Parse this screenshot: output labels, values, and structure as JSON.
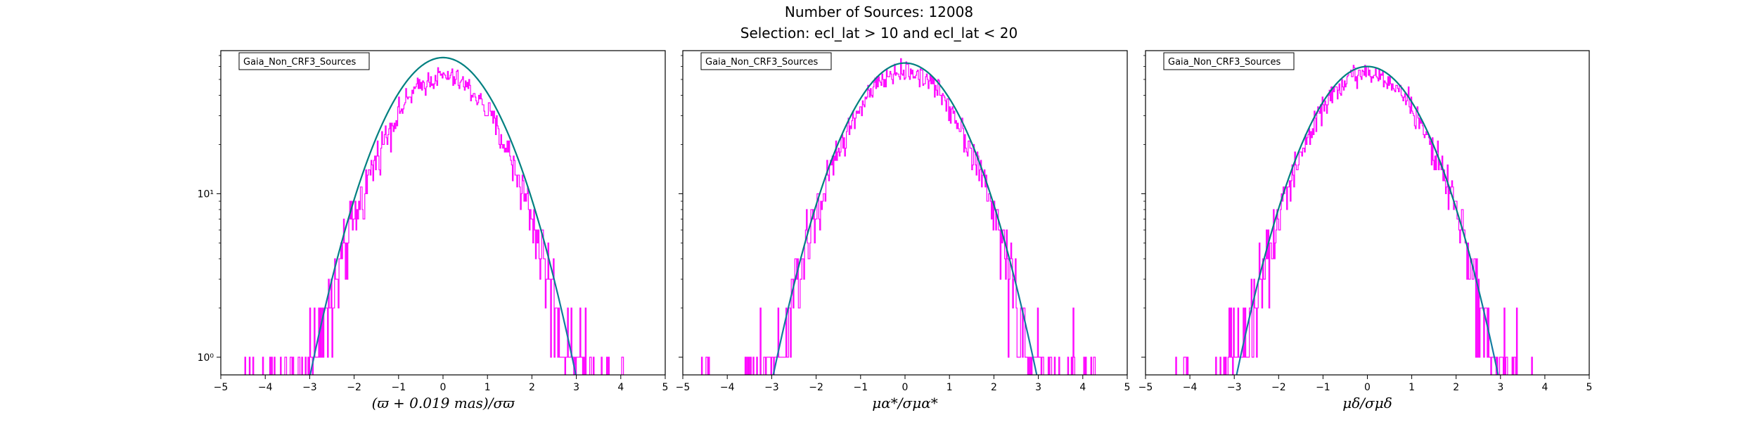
{
  "figure": {
    "title": "Number of Sources: 12008",
    "subtitle": "Selection: ecl_lat > 10 and ecl_lat < 20"
  },
  "colors": {
    "histogram": "#ff00ff",
    "gaussian": [
      "#008080",
      "#1f77b4"
    ],
    "axes": "#000000",
    "background": "#ffffff"
  },
  "chart_data": [
    {
      "type": "line",
      "legend": "Gaia_Non_CRF3_Sources",
      "legend_loc": "upper left",
      "xlabel": "(ϖ + 0.019 mas)/σϖ",
      "xlim": [
        -5,
        5
      ],
      "ylim": [
        0.78,
        75
      ],
      "yscale": "log",
      "xticks": [
        -5,
        -4,
        -3,
        -2,
        -1,
        0,
        1,
        2,
        3,
        4,
        5
      ],
      "xtick_labels": [
        "−5",
        "−4",
        "−3",
        "−2",
        "−1",
        "0",
        "1",
        "2",
        "3",
        "4",
        "5"
      ],
      "yticks": [
        1,
        10
      ],
      "ytick_labels": [
        "10⁰",
        "10¹"
      ],
      "series": [
        {
          "kind": "histogram",
          "bin_width": 0.02,
          "x_range": [
            -4.7,
            4.1
          ],
          "peak": 52,
          "center": 0.0
        },
        {
          "kind": "gaussian",
          "peak": 68,
          "center": 0.0,
          "x_range": [
            -3.2,
            3.2
          ]
        }
      ]
    },
    {
      "type": "line",
      "legend": "Gaia_Non_CRF3_Sources",
      "legend_loc": "upper left",
      "xlabel": "μα*/σμα*",
      "xlim": [
        -5,
        5
      ],
      "ylim": [
        0.78,
        75
      ],
      "yscale": "log",
      "xticks": [
        -5,
        -4,
        -3,
        -2,
        -1,
        0,
        1,
        2,
        3,
        4,
        5
      ],
      "xtick_labels": [
        "−5",
        "−4",
        "−3",
        "−2",
        "−1",
        "0",
        "1",
        "2",
        "3",
        "4",
        "5"
      ],
      "yticks": [
        1,
        10
      ],
      "ytick_labels": [
        "",
        ""
      ],
      "series": [
        {
          "kind": "histogram",
          "bin_width": 0.02,
          "x_range": [
            -4.6,
            4.5
          ],
          "peak": 56,
          "center": 0.0
        },
        {
          "kind": "gaussian",
          "peak": 63,
          "center": 0.0,
          "x_range": [
            -3.2,
            3.2
          ]
        }
      ]
    },
    {
      "type": "line",
      "legend": "Gaia_Non_CRF3_Sources",
      "legend_loc": "upper left",
      "xlabel": "μδ/σμδ",
      "xlim": [
        -5,
        5
      ],
      "ylim": [
        0.78,
        75
      ],
      "yscale": "log",
      "xticks": [
        -5,
        -4,
        -3,
        -2,
        -1,
        0,
        1,
        2,
        3,
        4,
        5
      ],
      "xtick_labels": [
        "−5",
        "−4",
        "−3",
        "−2",
        "−1",
        "0",
        "1",
        "2",
        "3",
        "4",
        "5"
      ],
      "yticks": [
        1,
        10
      ],
      "ytick_labels": [
        "",
        ""
      ],
      "series": [
        {
          "kind": "histogram",
          "bin_width": 0.02,
          "x_range": [
            -4.4,
            3.7
          ],
          "peak": 55,
          "center": 0.0
        },
        {
          "kind": "gaussian",
          "peak": 60,
          "center": 0.0,
          "x_range": [
            -3.3,
            3.1
          ]
        }
      ]
    }
  ]
}
